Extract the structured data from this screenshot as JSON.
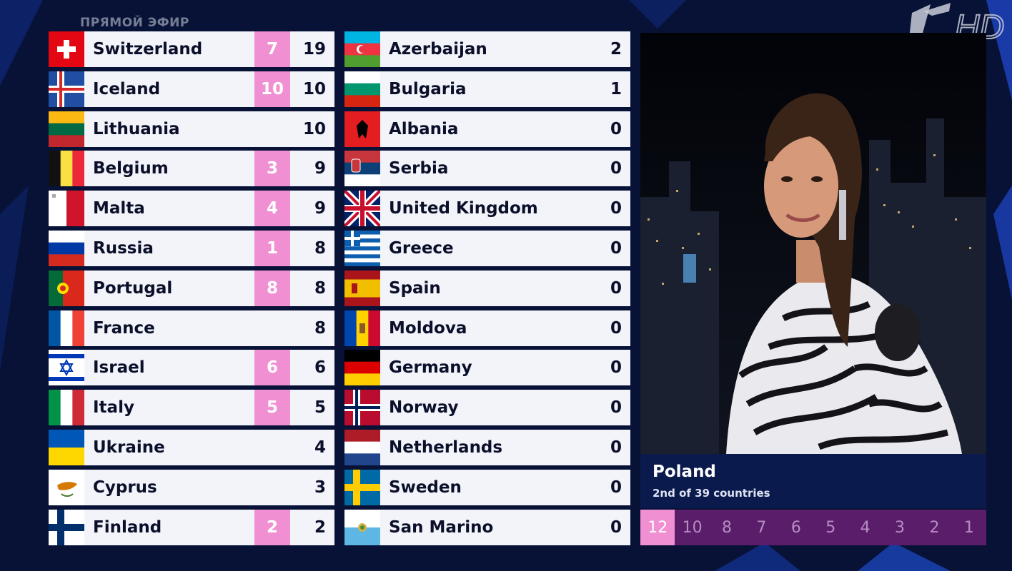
{
  "overlay": {
    "live_label": "ПРЯМОЙ ЭФИР"
  },
  "channel": {
    "logo": "channel-one-hd-logo"
  },
  "colors": {
    "accent_pink": "#f08fd2",
    "panel_blue": "#0a1a4d",
    "points_bar": "#5a1d6a",
    "background": "#071236"
  },
  "scoreboard": {
    "left": [
      {
        "country": "Switzerland",
        "flag": "switzerland-flag",
        "points_awarded": "7",
        "total": "19"
      },
      {
        "country": "Iceland",
        "flag": "iceland-flag",
        "points_awarded": "10",
        "total": "10"
      },
      {
        "country": "Lithuania",
        "flag": "lithuania-flag",
        "points_awarded": "",
        "total": "10"
      },
      {
        "country": "Belgium",
        "flag": "belgium-flag",
        "points_awarded": "3",
        "total": "9"
      },
      {
        "country": "Malta",
        "flag": "malta-flag",
        "points_awarded": "4",
        "total": "9"
      },
      {
        "country": "Russia",
        "flag": "russia-flag",
        "points_awarded": "1",
        "total": "8"
      },
      {
        "country": "Portugal",
        "flag": "portugal-flag",
        "points_awarded": "8",
        "total": "8"
      },
      {
        "country": "France",
        "flag": "france-flag",
        "points_awarded": "",
        "total": "8"
      },
      {
        "country": "Israel",
        "flag": "israel-flag",
        "points_awarded": "6",
        "total": "6"
      },
      {
        "country": "Italy",
        "flag": "italy-flag",
        "points_awarded": "5",
        "total": "5"
      },
      {
        "country": "Ukraine",
        "flag": "ukraine-flag",
        "points_awarded": "",
        "total": "4"
      },
      {
        "country": "Cyprus",
        "flag": "cyprus-flag",
        "points_awarded": "",
        "total": "3"
      },
      {
        "country": "Finland",
        "flag": "finland-flag",
        "points_awarded": "2",
        "total": "2"
      }
    ],
    "right": [
      {
        "country": "Azerbaijan",
        "flag": "azerbaijan-flag",
        "points_awarded": "",
        "total": "2"
      },
      {
        "country": "Bulgaria",
        "flag": "bulgaria-flag",
        "points_awarded": "",
        "total": "1"
      },
      {
        "country": "Albania",
        "flag": "albania-flag",
        "points_awarded": "",
        "total": "0"
      },
      {
        "country": "Serbia",
        "flag": "serbia-flag",
        "points_awarded": "",
        "total": "0"
      },
      {
        "country": "United Kingdom",
        "flag": "united-kingdom-flag",
        "points_awarded": "",
        "total": "0"
      },
      {
        "country": "Greece",
        "flag": "greece-flag",
        "points_awarded": "",
        "total": "0"
      },
      {
        "country": "Spain",
        "flag": "spain-flag",
        "points_awarded": "",
        "total": "0"
      },
      {
        "country": "Moldova",
        "flag": "moldova-flag",
        "points_awarded": "",
        "total": "0"
      },
      {
        "country": "Germany",
        "flag": "germany-flag",
        "points_awarded": "",
        "total": "0"
      },
      {
        "country": "Norway",
        "flag": "norway-flag",
        "points_awarded": "",
        "total": "0"
      },
      {
        "country": "Netherlands",
        "flag": "netherlands-flag",
        "points_awarded": "",
        "total": "0"
      },
      {
        "country": "Sweden",
        "flag": "sweden-flag",
        "points_awarded": "",
        "total": "0"
      },
      {
        "country": "San Marino",
        "flag": "san-marino-flag",
        "points_awarded": "",
        "total": "0"
      }
    ]
  },
  "spokesperson": {
    "country": "Poland",
    "rank_text": "2nd of 39 countries"
  },
  "points_bar": {
    "values": [
      "12",
      "10",
      "8",
      "7",
      "6",
      "5",
      "4",
      "3",
      "2",
      "1"
    ],
    "active_index": 0
  }
}
